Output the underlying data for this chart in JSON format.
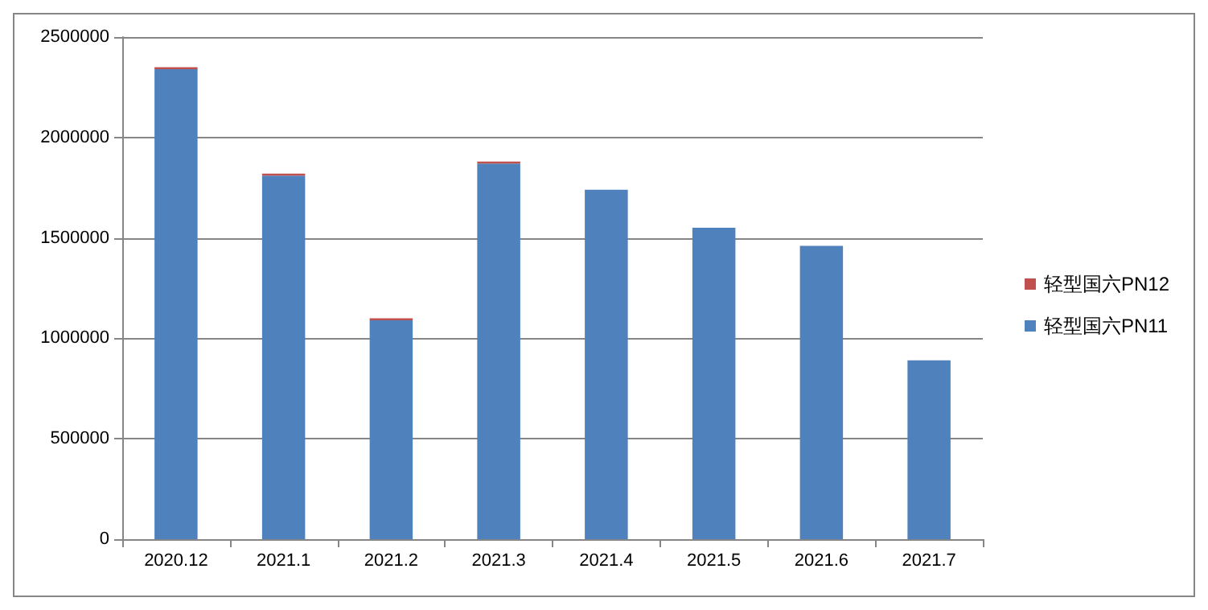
{
  "chart_data": {
    "type": "bar",
    "stacked": true,
    "categories": [
      "2020.12",
      "2021.1",
      "2021.2",
      "2021.3",
      "2021.4",
      "2021.5",
      "2021.6",
      "2021.7"
    ],
    "series": [
      {
        "name": "轻型国六PN11",
        "color": "#4f81bd",
        "values": [
          2340000,
          1810000,
          1090000,
          1870000,
          1740000,
          1550000,
          1460000,
          890000
        ]
      },
      {
        "name": "轻型国六PN12",
        "color": "#c0504d",
        "values": [
          10000,
          10000,
          10000,
          10000,
          0,
          0,
          0,
          0
        ]
      }
    ],
    "ylim": [
      0,
      2500000
    ],
    "yticks": [
      0,
      500000,
      1000000,
      1500000,
      2000000,
      2500000
    ],
    "grid": "y",
    "legend": "right"
  }
}
